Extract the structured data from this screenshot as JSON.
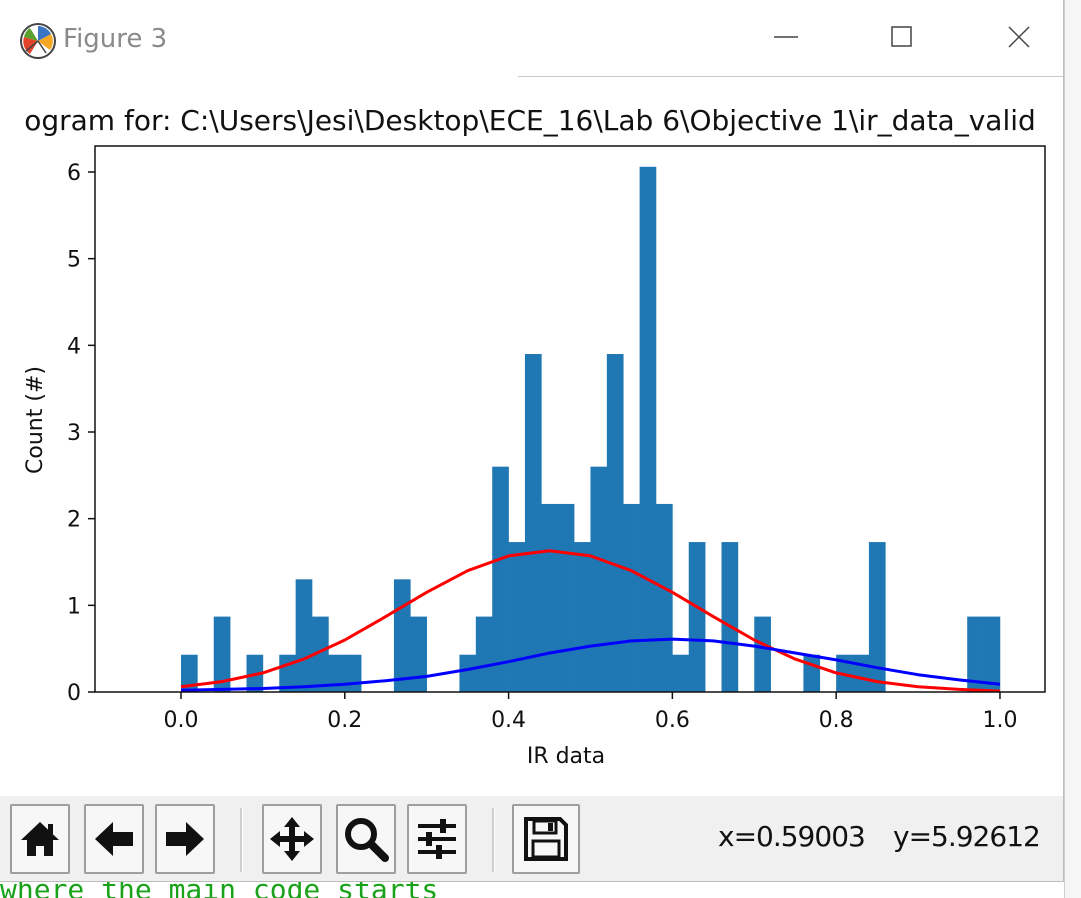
{
  "window": {
    "title": "Figure 3",
    "controls": [
      "minimize",
      "maximize",
      "close"
    ]
  },
  "chart_data": {
    "type": "bar",
    "title": "ogram for: C:\\Users\\Jesi\\Desktop\\ECE_16\\Lab 6\\Objective 1\\ir_data_valid",
    "xlabel": "IR data",
    "ylabel": "Count (#)",
    "xlim": [
      -0.105,
      1.055
    ],
    "ylim": [
      0,
      6.3
    ],
    "xticks": [
      "0.0",
      "0.2",
      "0.4",
      "0.6",
      "0.8",
      "1.0"
    ],
    "yticks": [
      "0",
      "1",
      "2",
      "3",
      "4",
      "5",
      "6"
    ],
    "bin_width": 0.02,
    "bin_starts": [
      0.0,
      0.02,
      0.04,
      0.06,
      0.08,
      0.1,
      0.12,
      0.14,
      0.16,
      0.18,
      0.2,
      0.22,
      0.24,
      0.26,
      0.28,
      0.3,
      0.32,
      0.34,
      0.36,
      0.38,
      0.4,
      0.42,
      0.44,
      0.46,
      0.48,
      0.5,
      0.52,
      0.54,
      0.56,
      0.58,
      0.6,
      0.62,
      0.64,
      0.66,
      0.68,
      0.7,
      0.72,
      0.74,
      0.76,
      0.78,
      0.8,
      0.82,
      0.84,
      0.86,
      0.88,
      0.9,
      0.92,
      0.94,
      0.96,
      0.98
    ],
    "counts": [
      0.43,
      0,
      0.87,
      0,
      0.43,
      0,
      0.43,
      1.3,
      0.87,
      0.43,
      0.43,
      0,
      0,
      1.3,
      0.87,
      0,
      0,
      0.43,
      0.87,
      2.6,
      1.73,
      3.9,
      2.17,
      2.17,
      1.73,
      2.6,
      3.9,
      2.17,
      6.06,
      2.17,
      0.43,
      1.73,
      0,
      1.73,
      0,
      0.87,
      0,
      0,
      0.43,
      0,
      0.43,
      0.43,
      1.73,
      0,
      0,
      0,
      0,
      0,
      0.87,
      0.87
    ],
    "bar_color": "#1f77b4",
    "series": [
      {
        "color": "#ff0000",
        "type": "line",
        "x": [
          0.0,
          0.05,
          0.1,
          0.15,
          0.2,
          0.25,
          0.3,
          0.35,
          0.4,
          0.45,
          0.5,
          0.55,
          0.6,
          0.65,
          0.7,
          0.75,
          0.8,
          0.85,
          0.9,
          0.95,
          1.0
        ],
        "y": [
          0.06,
          0.12,
          0.22,
          0.38,
          0.6,
          0.87,
          1.15,
          1.4,
          1.57,
          1.63,
          1.57,
          1.4,
          1.15,
          0.87,
          0.6,
          0.38,
          0.22,
          0.12,
          0.06,
          0.03,
          0.01
        ]
      },
      {
        "color": "#0000ff",
        "type": "line",
        "x": [
          0.0,
          0.05,
          0.1,
          0.15,
          0.2,
          0.25,
          0.3,
          0.35,
          0.4,
          0.45,
          0.5,
          0.55,
          0.6,
          0.65,
          0.7,
          0.75,
          0.8,
          0.85,
          0.9,
          0.95,
          1.0
        ],
        "y": [
          0.02,
          0.03,
          0.04,
          0.06,
          0.09,
          0.13,
          0.18,
          0.26,
          0.35,
          0.45,
          0.53,
          0.59,
          0.61,
          0.59,
          0.53,
          0.45,
          0.37,
          0.28,
          0.2,
          0.14,
          0.09
        ]
      }
    ]
  },
  "toolbar": {
    "buttons": [
      {
        "icon": "home-icon"
      },
      {
        "icon": "back-arrow-icon"
      },
      {
        "icon": "forward-arrow-icon"
      },
      {
        "icon": "pan-icon"
      },
      {
        "icon": "zoom-icon"
      },
      {
        "icon": "configure-subplots-icon"
      },
      {
        "icon": "save-icon"
      }
    ],
    "coord_x": "x=0.59003",
    "coord_y": "y=5.92612"
  },
  "background": {
    "code_text": "where the main code starts"
  }
}
